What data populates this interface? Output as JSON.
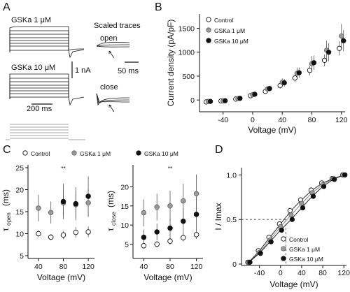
{
  "panel_letters": {
    "a": "A",
    "b": "B",
    "c": "C",
    "d": "D"
  },
  "panel_a": {
    "trace1_label": "GSKa 1 μM",
    "trace2_label": "GSKa 10 μM",
    "scale_current": "1 nA",
    "scale_time": "200 ms",
    "scaled_title": "Scaled traces",
    "open_label": "open",
    "close_label": "close",
    "scale_time2": "50 ms"
  },
  "colors": {
    "control": "#ffffff",
    "gska1": "#9a9a9a",
    "gska10": "#111111"
  },
  "chart_data": [
    {
      "panel": "B",
      "type": "scatter",
      "xlabel": "Voltage (mV)",
      "ylabel": "Current density (pA/pF)",
      "xlim": [
        -70,
        125
      ],
      "ylim": [
        -100,
        1800
      ],
      "xticks": [
        -40,
        0,
        40,
        80,
        120
      ],
      "yticks": [
        0,
        500,
        1000,
        1500
      ],
      "x": [
        -60,
        -40,
        -20,
        0,
        20,
        40,
        60,
        80,
        100,
        120
      ],
      "series": [
        {
          "name": "Control",
          "values": [
            -40,
            -20,
            20,
            90,
            180,
            300,
            460,
            620,
            830,
            1080
          ],
          "err": [
            20,
            20,
            20,
            30,
            50,
            60,
            80,
            100,
            120,
            150
          ]
        },
        {
          "name": "GSKa 1 μM",
          "values": [
            -30,
            -20,
            30,
            110,
            230,
            370,
            560,
            760,
            1040,
            1340
          ],
          "err": [
            20,
            20,
            30,
            40,
            60,
            80,
            120,
            160,
            200,
            250
          ]
        },
        {
          "name": "GSKa 10 μM",
          "values": [
            -30,
            -15,
            35,
            120,
            240,
            360,
            570,
            780,
            1000,
            1240
          ],
          "err": [
            20,
            20,
            30,
            40,
            60,
            80,
            110,
            150,
            190,
            220
          ]
        }
      ],
      "legend": "top-left"
    },
    {
      "panel": "C-open",
      "type": "scatter",
      "xlabel": "Voltage (mV)",
      "ylabel_main": "τ",
      "ylabel_sub": "open",
      "ylabel_unit": "(ms)",
      "xlim": [
        30,
        130
      ],
      "ylim": [
        5,
        25
      ],
      "xticks": [
        40,
        80,
        120
      ],
      "yticks": [
        5,
        10,
        15,
        20,
        25
      ],
      "x": [
        40,
        60,
        80,
        100,
        120
      ],
      "annotation": {
        "text": "**",
        "x": 80
      },
      "series": [
        {
          "name": "Control",
          "values": [
            10.0,
            9.2,
            9.7,
            10.3,
            10.4
          ],
          "err": [
            0.8,
            0.7,
            0.9,
            1.2,
            1.2
          ]
        },
        {
          "name": "GSKa 1 μM",
          "values": [
            15.8,
            14.8,
            17.0,
            16.6,
            17.0
          ],
          "err": [
            3.0,
            2.5,
            3.0,
            3.0,
            3.2
          ]
        },
        {
          "name": "GSKa 10 μM",
          "values": [
            null,
            null,
            17.3,
            16.8,
            18.5
          ],
          "err": [
            0,
            0,
            4.0,
            3.8,
            4.5
          ]
        }
      ],
      "legend": "top"
    },
    {
      "panel": "C-close",
      "type": "scatter",
      "xlabel": "Voltage (mV)",
      "ylabel_main": "τ",
      "ylabel_sub": "close",
      "ylabel_unit": "(ms)",
      "xlim": [
        30,
        130
      ],
      "ylim": [
        2,
        25
      ],
      "xticks": [
        40,
        80,
        120
      ],
      "yticks": [
        5,
        10,
        15,
        20
      ],
      "x": [
        40,
        60,
        80,
        100,
        120
      ],
      "annotation": {
        "text": "**",
        "x": 80
      },
      "series": [
        {
          "name": "Control",
          "values": [
            4.6,
            5.0,
            5.8,
            6.7,
            7.5
          ],
          "err": [
            0.8,
            0.8,
            0.9,
            1.0,
            1.1
          ]
        },
        {
          "name": "GSKa 1 μM",
          "values": [
            13.2,
            14.7,
            15.0,
            16.3,
            18.2
          ],
          "err": [
            3.5,
            3.5,
            4.0,
            4.5,
            5.0
          ]
        },
        {
          "name": "GSKa 10 μM",
          "values": [
            6.8,
            8.2,
            9.2,
            11.0,
            12.8
          ],
          "err": [
            2.0,
            2.2,
            2.5,
            3.5,
            4.5
          ]
        }
      ]
    },
    {
      "panel": "D",
      "type": "scatter",
      "xlabel": "Voltage (mV)",
      "ylabel": "I / Imax",
      "xlim": [
        -70,
        125
      ],
      "ylim": [
        0,
        1.05
      ],
      "xticks": [
        -40,
        0,
        40,
        80,
        120
      ],
      "yticks": [
        0,
        0.5,
        1.0
      ],
      "ytick_labels": [
        "0",
        "0.5",
        "1.0"
      ],
      "x": [
        -60,
        -40,
        -20,
        0,
        20,
        40,
        60,
        80,
        100,
        120
      ],
      "half_max": {
        "y": 0.5,
        "x": 10
      },
      "series": [
        {
          "name": "Control",
          "values": [
            0.02,
            0.15,
            0.3,
            0.45,
            0.6,
            0.72,
            0.83,
            0.91,
            0.96,
            1.0
          ]
        },
        {
          "name": "GSKa 1 μM",
          "values": [
            0.02,
            0.13,
            0.27,
            0.42,
            0.55,
            0.68,
            0.8,
            0.89,
            0.96,
            1.0
          ]
        },
        {
          "name": "GSKa 10 μM",
          "values": [
            0.02,
            0.12,
            0.25,
            0.38,
            0.5,
            0.63,
            0.76,
            0.87,
            0.95,
            1.0
          ]
        }
      ],
      "legend": "bottom-right"
    }
  ]
}
